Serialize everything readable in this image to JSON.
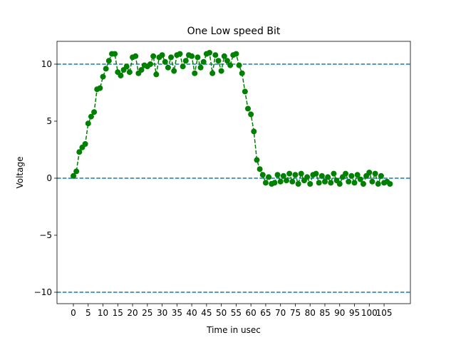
{
  "chart_data": {
    "type": "line",
    "title": "One Low speed Bit",
    "x_label": "Time in usec",
    "y_label": "Voltage",
    "x": [
      0,
      1,
      2,
      3,
      4,
      5,
      6,
      7,
      8,
      9,
      10,
      11,
      12,
      13,
      14,
      15,
      16,
      17,
      18,
      19,
      20,
      21,
      22,
      23,
      24,
      25,
      26,
      27,
      28,
      29,
      30,
      31,
      32,
      33,
      34,
      35,
      36,
      37,
      38,
      39,
      40,
      41,
      42,
      43,
      44,
      45,
      46,
      47,
      48,
      49,
      50,
      51,
      52,
      53,
      54,
      55,
      56,
      57,
      58,
      59,
      60,
      61,
      62,
      63,
      64,
      65,
      66,
      67,
      68,
      69,
      70,
      71,
      72,
      73,
      74,
      75,
      76,
      77,
      78,
      79,
      80,
      81,
      82,
      83,
      84,
      85,
      86,
      87,
      88,
      89,
      90,
      91,
      92,
      93,
      94,
      95,
      96,
      97,
      98,
      99,
      100,
      101,
      102,
      103,
      104,
      105,
      106,
      107
    ],
    "series": [
      {
        "color": "#008000",
        "values": [
          0.2,
          0.6,
          2.3,
          2.7,
          3.0,
          4.8,
          5.4,
          5.8,
          7.8,
          7.9,
          8.9,
          9.6,
          10.3,
          10.9,
          10.9,
          9.3,
          9.0,
          9.5,
          9.8,
          9.3,
          10.6,
          10.7,
          9.2,
          9.5,
          9.9,
          9.8,
          10.0,
          10.7,
          9.1,
          10.6,
          10.8,
          10.2,
          9.7,
          10.6,
          9.4,
          10.8,
          10.9,
          9.8,
          10.3,
          10.8,
          10.7,
          9.2,
          10.6,
          9.7,
          10.2,
          10.9,
          11.0,
          9.2,
          10.8,
          10.3,
          9.4,
          10.7,
          10.3,
          9.9,
          10.8,
          10.9,
          9.9,
          9.2,
          7.6,
          6.1,
          5.6,
          4.1,
          1.6,
          0.8,
          0.3,
          -0.4,
          0.1,
          -0.5,
          -0.4,
          0.3,
          -0.3,
          0.2,
          -0.2,
          0.4,
          -0.3,
          0.3,
          -0.5,
          0.4,
          -0.2,
          0.1,
          -0.5,
          0.3,
          0.4,
          -0.4,
          0.2,
          -0.3,
          0.1,
          -0.4,
          0.4,
          -0.2,
          -0.5,
          0.1,
          0.4,
          -0.3,
          0.2,
          -0.4,
          0.3,
          -0.1,
          -0.5,
          0.2,
          0.5,
          -0.3,
          0.4,
          -0.5,
          0.2,
          -0.4,
          -0.3,
          -0.5
        ]
      }
    ],
    "hlines": [
      -10,
      0,
      10
    ],
    "hline_color": "#1f77b4",
    "xlim": [
      -5.54,
      113.9
    ],
    "ylim": [
      -11,
      12
    ],
    "xticks": [
      0,
      5,
      10,
      15,
      20,
      25,
      30,
      35,
      40,
      45,
      50,
      55,
      60,
      65,
      70,
      75,
      80,
      85,
      90,
      95,
      100,
      105
    ],
    "yticks": [
      {
        "value": -10,
        "label": "−10"
      },
      {
        "value": -5,
        "label": "−5"
      },
      0,
      5,
      10
    ]
  }
}
